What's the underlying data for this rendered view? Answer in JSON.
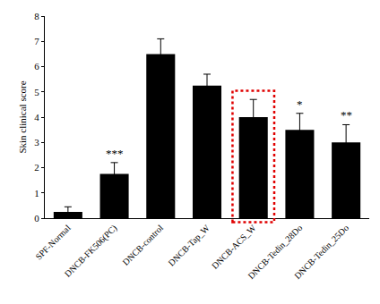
{
  "chart_data": {
    "type": "bar",
    "y_label": "Skin clinical score",
    "categories": [
      "SPF-Normal",
      "DNCB-FK506(PC)",
      "DNCB-control",
      "DNCB-Tap_W",
      "DNCB-ACS_W",
      "DNCB-Tedin_28Do",
      "DNCB-Tedin_25Do"
    ],
    "values": [
      0.25,
      1.75,
      6.5,
      5.25,
      4.0,
      3.5,
      3.0
    ],
    "errors": [
      0.2,
      0.45,
      0.6,
      0.45,
      0.7,
      0.65,
      0.7
    ],
    "color": "#000000",
    "ylim": [
      0,
      8
    ],
    "yticks": [
      0,
      1,
      2,
      3,
      4,
      5,
      6,
      7,
      8
    ],
    "grid": false,
    "annotations": [
      {
        "text": "***",
        "category": "DNCB-FK506(PC)"
      },
      {
        "text": "*",
        "category": "DNCB-Tedin_28Do"
      },
      {
        "text": "**",
        "category": "DNCB-Tedin_25Do"
      }
    ]
  }
}
